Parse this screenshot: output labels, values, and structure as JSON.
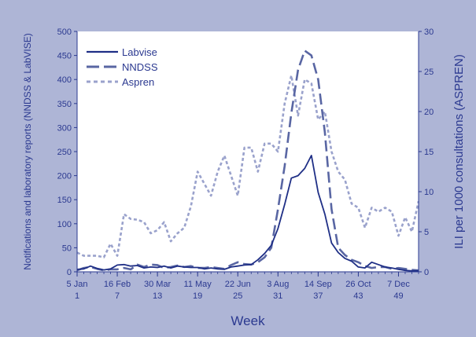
{
  "chart_data": {
    "type": "line",
    "xlabel": "Week",
    "ylabel_left": "Notifications and laboratory reports (NNDSS & LabVISE)",
    "ylabel_right": "ILI per 1000 consultations  (ASPREN)",
    "ylim_left": [
      0,
      500
    ],
    "ylim_right": [
      0,
      30
    ],
    "yticks_left": [
      "0",
      "50",
      "100",
      "150",
      "200",
      "250",
      "300",
      "350",
      "400",
      "450",
      "500"
    ],
    "yticks_right": [
      "0",
      "5",
      "10",
      "15",
      "20",
      "25",
      "30"
    ],
    "xlim": [
      1,
      52
    ],
    "x_ticks": [
      {
        "week": 1,
        "date": "5 Jan",
        "num": "1"
      },
      {
        "week": 7,
        "date": "16 Feb",
        "num": "7"
      },
      {
        "week": 13,
        "date": "30 Mar",
        "num": "13"
      },
      {
        "week": 19,
        "date": "11 May",
        "num": "19"
      },
      {
        "week": 25,
        "date": "22 Jun",
        "num": "25"
      },
      {
        "week": 31,
        "date": "3 Aug",
        "num": "31"
      },
      {
        "week": 37,
        "date": "14 Sep",
        "num": "37"
      },
      {
        "week": 43,
        "date": "26 Oct",
        "num": "43"
      },
      {
        "week": 49,
        "date": "7 Dec",
        "num": "49"
      }
    ],
    "legend_position": "top-left",
    "grid": false,
    "series": [
      {
        "name": "Labvise",
        "axis": "left",
        "color": "#1f2f86",
        "style": "solid",
        "x": [
          1,
          2,
          3,
          4,
          5,
          6,
          7,
          8,
          9,
          10,
          11,
          12,
          13,
          14,
          15,
          16,
          17,
          18,
          19,
          20,
          21,
          22,
          23,
          24,
          25,
          26,
          27,
          28,
          29,
          30,
          31,
          32,
          33,
          34,
          35,
          36,
          37,
          38,
          39,
          40,
          41,
          42,
          43,
          44,
          45,
          46,
          47,
          48,
          49,
          50,
          51,
          52
        ],
        "values": [
          5,
          6,
          12,
          7,
          4,
          6,
          14,
          15,
          12,
          13,
          8,
          10,
          9,
          12,
          8,
          12,
          10,
          9,
          9,
          6,
          8,
          6,
          5,
          10,
          12,
          14,
          15,
          25,
          38,
          55,
          90,
          140,
          195,
          200,
          215,
          242,
          165,
          120,
          60,
          40,
          28,
          22,
          10,
          8,
          20,
          15,
          10,
          8,
          5,
          3,
          2,
          2
        ]
      },
      {
        "name": "NNDSS",
        "axis": "left",
        "color": "#5966a3",
        "style": "dashed",
        "x": [
          1,
          2,
          3,
          4,
          5,
          6,
          7,
          8,
          9,
          10,
          11,
          12,
          13,
          14,
          15,
          16,
          17,
          18,
          19,
          20,
          21,
          22,
          23,
          24,
          25,
          26,
          27,
          28,
          29,
          30,
          31,
          32,
          33,
          34,
          35,
          36,
          37,
          38,
          39,
          40,
          41,
          42,
          43,
          44,
          45,
          46,
          47,
          48,
          49,
          50,
          51,
          52
        ],
        "values": [
          3,
          8,
          10,
          6,
          3,
          5,
          5,
          8,
          5,
          15,
          10,
          15,
          14,
          8,
          10,
          13,
          10,
          12,
          8,
          8,
          10,
          8,
          6,
          14,
          20,
          16,
          15,
          20,
          30,
          50,
          130,
          220,
          330,
          420,
          460,
          450,
          400,
          290,
          130,
          50,
          35,
          25,
          20,
          12,
          8,
          10,
          10,
          6,
          8,
          6,
          4,
          3
        ]
      },
      {
        "name": "Aspren",
        "axis": "right",
        "color": "#9aa2cc",
        "style": "dotted",
        "x": [
          1,
          2,
          3,
          4,
          5,
          6,
          7,
          8,
          9,
          10,
          11,
          12,
          13,
          14,
          15,
          16,
          17,
          18,
          19,
          20,
          21,
          22,
          23,
          24,
          25,
          26,
          27,
          28,
          29,
          30,
          31,
          32,
          33,
          34,
          35,
          36,
          37,
          38,
          39,
          40,
          41,
          42,
          43,
          44,
          45,
          46,
          47,
          48,
          49,
          50,
          51,
          52
        ],
        "values": [
          2.4,
          2.0,
          2.0,
          2.0,
          1.8,
          3.5,
          2.0,
          7.2,
          6.6,
          6.5,
          6.2,
          4.8,
          5.2,
          6.2,
          3.8,
          4.8,
          5.5,
          8.2,
          12.5,
          11.0,
          9.5,
          12.5,
          14.5,
          12.0,
          9.5,
          15.5,
          15.5,
          12.5,
          16.0,
          16.0,
          15.0,
          21.0,
          24.5,
          19.5,
          24.0,
          23.5,
          19.0,
          20.0,
          15.0,
          12.5,
          11.5,
          8.5,
          8.0,
          5.5,
          8.0,
          7.5,
          8.0,
          7.5,
          4.5,
          6.8,
          5.0,
          8.8
        ]
      }
    ]
  }
}
